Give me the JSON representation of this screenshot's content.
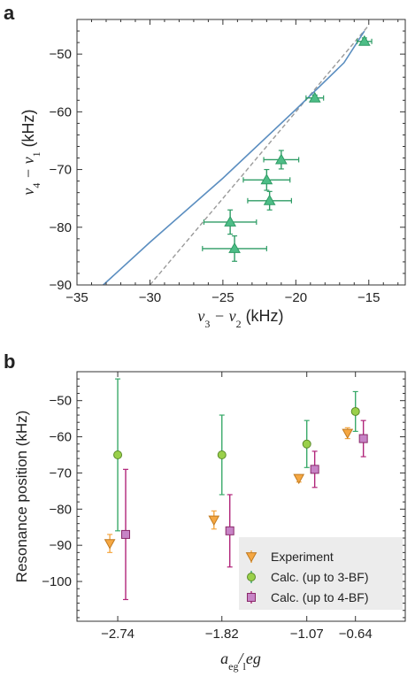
{
  "chart_data": [
    {
      "panel": "a",
      "type": "scatter",
      "xlabel_parts": [
        "ν",
        "3",
        " − ν",
        "2",
        " (kHz)"
      ],
      "ylabel_parts": [
        "ν",
        "4",
        " − ν",
        "1",
        " (kHz)"
      ],
      "xlim": [
        -35,
        -12.5
      ],
      "ylim": [
        -90,
        -44
      ],
      "xticks": [
        -35,
        -30,
        -25,
        -20,
        -15
      ],
      "xtick_labels": [
        "−35",
        "−30",
        "−25",
        "−20",
        "−15"
      ],
      "yticks": [
        -90,
        -80,
        -70,
        -60,
        -50
      ],
      "ytick_labels": [
        "−90",
        "−80",
        "−70",
        "−60",
        "−50"
      ],
      "grid": false,
      "points": [
        {
          "x": -15.3,
          "y": -47.8,
          "xerr": 0.5,
          "yerr": 0.6
        },
        {
          "x": -18.7,
          "y": -57.6,
          "xerr": 0.6,
          "yerr": 0.5
        },
        {
          "x": -21.0,
          "y": -68.3,
          "xerr": 1.2,
          "yerr": 1.6
        },
        {
          "x": -22.0,
          "y": -71.8,
          "xerr": 1.6,
          "yerr": 1.8
        },
        {
          "x": -21.8,
          "y": -75.4,
          "xerr": 1.5,
          "yerr": 1.6
        },
        {
          "x": -24.5,
          "y": -79.1,
          "xerr": 1.8,
          "yerr": 2.1
        },
        {
          "x": -24.2,
          "y": -83.7,
          "xerr": 2.2,
          "yerr": 2.2
        }
      ],
      "solid_line": [
        [
          -33.2,
          -90
        ],
        [
          -30,
          -82.6
        ],
        [
          -25,
          -71.5
        ],
        [
          -20,
          -59.6
        ],
        [
          -16.7,
          -51.5
        ],
        [
          -15.3,
          -46
        ]
      ],
      "dashed_line": [
        [
          -30,
          -90
        ],
        [
          -15,
          -45
        ]
      ],
      "colors": {
        "points": "#4dbd86",
        "points_edge": "#2e9c65",
        "solid": "#5b8ec0",
        "dashed": "#9a9a9a"
      }
    },
    {
      "panel": "b",
      "type": "scatter",
      "ylabel": "Resonance position (kHz)",
      "xlabel_parts": [
        "a",
        "eg",
        "/",
        "l",
        "eg"
      ],
      "categories": [
        "-2.74",
        "-1.82",
        "-1.07",
        "-0.64"
      ],
      "xtick_labels": [
        "−2.74",
        "−1.82",
        "−1.07",
        "−0.64"
      ],
      "xlim": [
        -3.1,
        -0.2
      ],
      "ylim": [
        -111,
        -42
      ],
      "yticks": [
        -100,
        -90,
        -80,
        -70,
        -60,
        -50
      ],
      "ytick_labels": [
        "−100",
        "−90",
        "−80",
        "−70",
        "−60",
        "−50"
      ],
      "grid": false,
      "legend_position": "bottom-right",
      "series": [
        {
          "name": "Experiment",
          "marker": "triangle-down",
          "color": "#f5a742",
          "offset": -0.07,
          "values": [
            -89.5,
            -83,
            -71.5,
            -59
          ],
          "err": [
            2.5,
            2.5,
            1,
            1.5
          ]
        },
        {
          "name": "Calc. (up to 3-BF)",
          "marker": "circle",
          "color": "#9ad04a",
          "bar_color": "#3aaa6a",
          "offset": 0.0,
          "values": [
            -65,
            -65,
            -62,
            -53
          ],
          "err": [
            21,
            11,
            6.5,
            5.5
          ]
        },
        {
          "name": "Calc. (up to 4-BF)",
          "marker": "square",
          "color": "#c784c6",
          "bar_color": "#b1257a",
          "offset": 0.07,
          "values": [
            -87,
            -86,
            -69,
            -60.5
          ],
          "err": [
            18,
            10,
            5,
            5
          ]
        }
      ]
    }
  ],
  "labels": {
    "panel_a": "a",
    "panel_b": "b"
  }
}
